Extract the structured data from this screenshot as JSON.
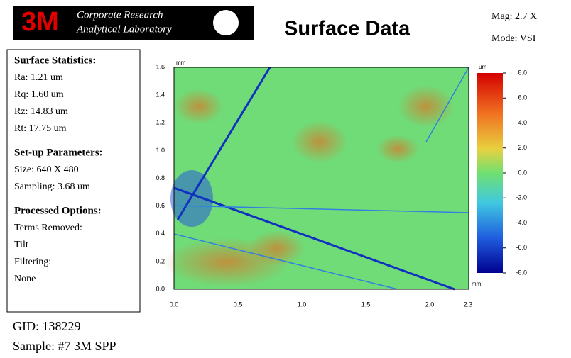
{
  "header": {
    "logo": "3M",
    "lab_line1": "Corporate Research",
    "lab_line2": "Analytical Laboratory",
    "title": "Surface Data",
    "mag": "Mag:  2.7 X",
    "mode": "Mode:  VSI"
  },
  "stats": {
    "heading": "Surface Statistics:",
    "items": [
      "Ra: 1.21 um",
      "Rq: 1.60 um",
      "Rz:  14.83 um",
      "Rt:  17.75 um"
    ]
  },
  "setup": {
    "heading": "Set-up Parameters:",
    "items": [
      "Size: 640 X 480",
      "Sampling:  3.68 um"
    ]
  },
  "processed": {
    "heading": "Processed Options:",
    "items": [
      "Terms Removed:",
      "Tilt",
      "Filtering:",
      "None"
    ]
  },
  "plot": {
    "y_unit": "mm",
    "x_unit": "mm",
    "yticks": [
      "0.0",
      "0.2",
      "0.4",
      "0.6",
      "0.8",
      "1.0",
      "1.2",
      "1.4",
      "1.6"
    ],
    "xticks": [
      "0.0",
      "0.5",
      "1.0",
      "1.5",
      "2.0",
      "2.3"
    ],
    "colorbar_unit": "um",
    "colorbar_ticks": [
      "8.0",
      "6.0",
      "4.0",
      "2.0",
      "0.0",
      "-2.0",
      "-4.0",
      "-6.0",
      "-8.0"
    ]
  },
  "footer": {
    "gid": "GID: 138229",
    "sample": "Sample: #7 3M SPP"
  }
}
